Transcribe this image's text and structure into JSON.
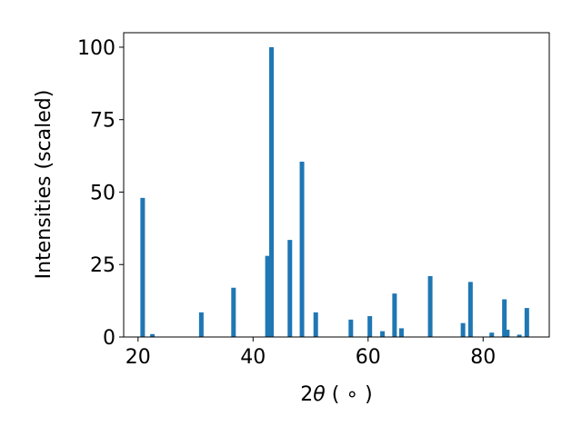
{
  "chart_data": {
    "type": "bar",
    "title": "",
    "xlabel_main": "2",
    "xlabel_theta": "θ",
    "xlabel_unit": " ( ∘ )",
    "ylabel": "Intensities (scaled)",
    "xlim": [
      17.5,
      91.5
    ],
    "ylim": [
      0,
      105
    ],
    "xticks": [
      20,
      40,
      60,
      80
    ],
    "yticks": [
      0,
      25,
      50,
      75,
      100
    ],
    "bar_color": "#1f77b4",
    "grid": false,
    "legend": "none",
    "x": [
      20.8,
      22.5,
      31.0,
      36.6,
      42.5,
      43.2,
      46.4,
      48.5,
      50.9,
      57.0,
      60.3,
      62.5,
      64.6,
      65.8,
      70.8,
      76.5,
      77.8,
      81.5,
      83.7,
      84.2,
      86.3,
      87.6
    ],
    "values": [
      48,
      1,
      8.5,
      17,
      28,
      100,
      33.5,
      60.5,
      8.5,
      6,
      7.2,
      2,
      15,
      3,
      21,
      4.8,
      19,
      1.5,
      13,
      2.5,
      0.8,
      10
    ]
  }
}
